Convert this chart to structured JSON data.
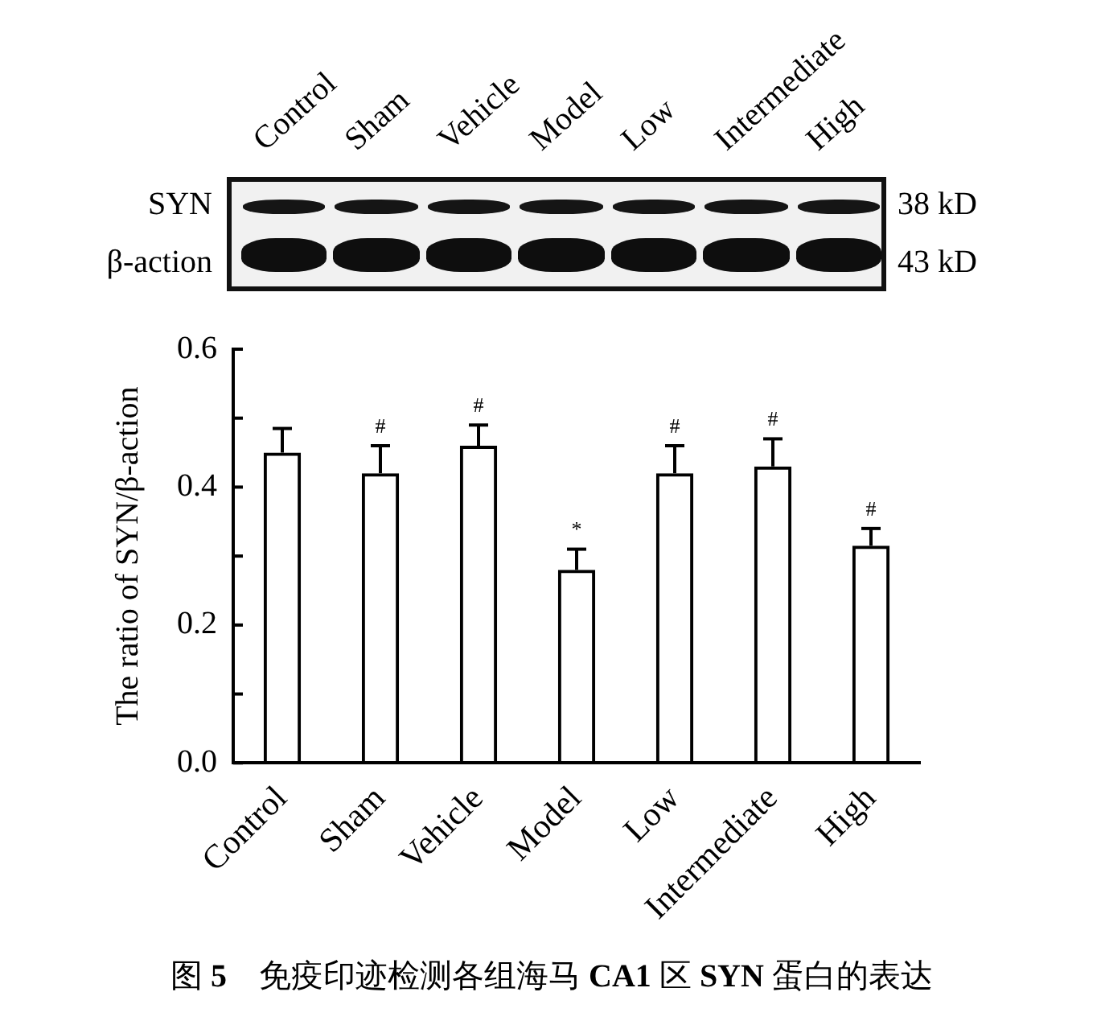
{
  "chart_data": {
    "type": "bar",
    "categories": [
      "Control",
      "Sham",
      "Vehicle",
      "Model",
      "Low",
      "Intermediate",
      "High"
    ],
    "values": [
      0.45,
      0.42,
      0.46,
      0.28,
      0.42,
      0.43,
      0.315
    ],
    "color": "#000000",
    "errors": [
      [
        0.45,
        0.485
      ],
      [
        0.42,
        0.46
      ],
      [
        0.46,
        0.49
      ],
      [
        0.28,
        0.31
      ],
      [
        0.42,
        0.46
      ],
      [
        0.43,
        0.47
      ],
      [
        0.315,
        0.34
      ]
    ],
    "ylabel": "The ratio of SYN/β-action",
    "ylim": [
      0,
      0.6
    ],
    "yticks": [
      {
        "value": 0,
        "label": "0.0"
      },
      {
        "value": 0.1,
        "label": null
      },
      {
        "value": 0.2,
        "label": "0.2"
      },
      {
        "value": 0.3,
        "label": null
      },
      {
        "value": 0.4,
        "label": "0.4"
      },
      {
        "value": 0.5,
        "label": null
      },
      {
        "value": 0.6,
        "label": "0.6"
      }
    ],
    "annotations": [
      "SYN",
      "38 kD",
      "β-action",
      "43 kD",
      "图 5　免疫印迹检测各组海马 CA1 区 SYN 蛋白的表达",
      "#",
      "#",
      "*",
      "#",
      "#",
      "#"
    ],
    "grid": false
  }
}
